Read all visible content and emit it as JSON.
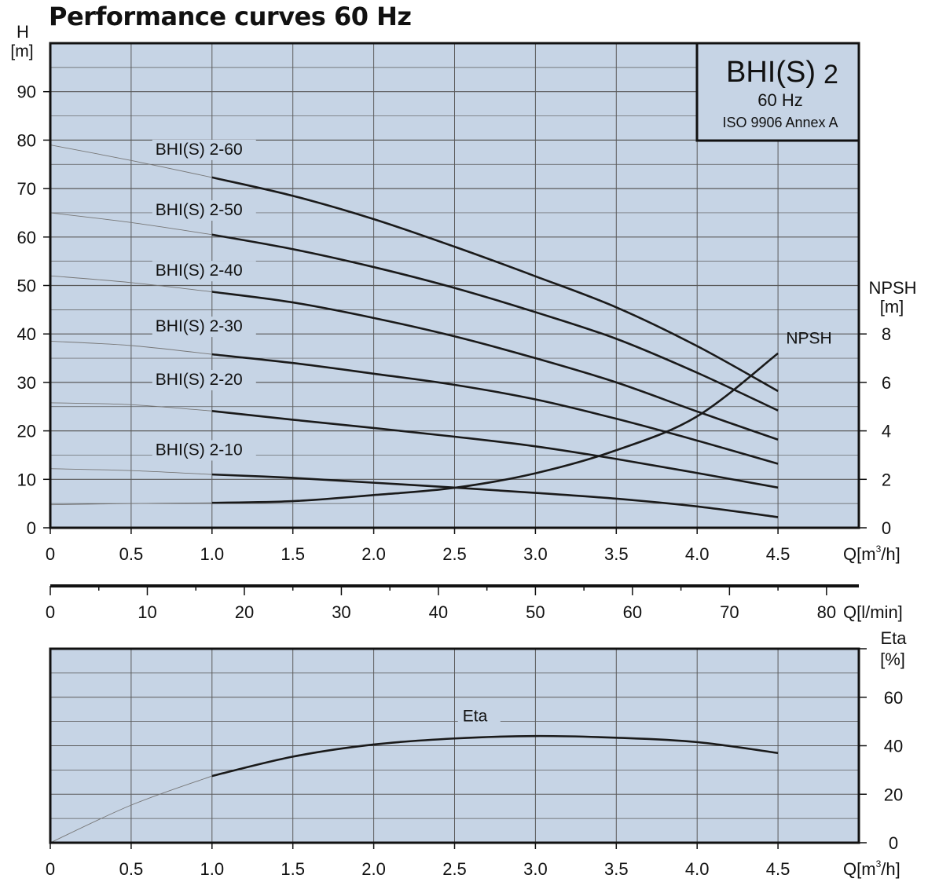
{
  "title": "Performance curves 60 Hz",
  "colors": {
    "plot_bg": "#c6d4e5",
    "curve": "#1a1a1a",
    "thin_curve": "#777777",
    "grid": "#5a5a5a"
  },
  "chart_data": [
    {
      "type": "line",
      "name": "head",
      "x_unit": "Q[m³/h]",
      "xlabel_main": "Q[m",
      "xlabel_sup": "3",
      "xlabel_end": "/h]",
      "xlim": [
        0,
        5
      ],
      "ylim": [
        0,
        100
      ],
      "x_ticks": [
        0,
        0.5,
        1.0,
        1.5,
        2.0,
        2.5,
        3.0,
        3.5,
        4.0,
        4.5
      ],
      "x_tick_labels": [
        "0",
        "0.5",
        "1.0",
        "1.5",
        "2.0",
        "2.5",
        "3.0",
        "3.5",
        "4.0",
        "4.5"
      ],
      "y_ticks": [
        0,
        10,
        20,
        30,
        40,
        50,
        60,
        70,
        80,
        90
      ],
      "y_tick_labels": [
        "0",
        "10",
        "20",
        "30",
        "40",
        "50",
        "60",
        "70",
        "80",
        "90"
      ],
      "ylabel_top": "H",
      "ylabel_unit": "[m]",
      "y2label_top": "NPSH",
      "y2label_unit": "[m]",
      "y2lim": [
        0,
        20
      ],
      "y2_ticks": [
        0,
        2,
        4,
        6,
        8
      ],
      "y2_tick_labels": [
        "0",
        "2",
        "4",
        "6",
        "8"
      ],
      "legend_box": {
        "model": "BHI(S)",
        "model_size": "2",
        "freq": "60 Hz",
        "standard": "ISO 9906 Annex A",
        "position": "top-right"
      },
      "series": [
        {
          "name": "BHI(S) 2-60",
          "label_at": [
            0.65,
            77
          ],
          "thin": [
            [
              0,
              79
            ],
            [
              0.5,
              75.8
            ],
            [
              1.0,
              72.3
            ]
          ],
          "values": [
            [
              1.0,
              72.3
            ],
            [
              1.5,
              68.5
            ],
            [
              2.0,
              63.7
            ],
            [
              2.5,
              58.0
            ],
            [
              3.0,
              51.9
            ],
            [
              3.5,
              45.5
            ],
            [
              4.0,
              37.5
            ],
            [
              4.5,
              28.2
            ]
          ]
        },
        {
          "name": "BHI(S) 2-50",
          "label_at": [
            0.65,
            64.5
          ],
          "thin": [
            [
              0,
              65
            ],
            [
              0.5,
              63.0
            ],
            [
              1.0,
              60.5
            ]
          ],
          "values": [
            [
              1.0,
              60.5
            ],
            [
              1.5,
              57.5
            ],
            [
              2.0,
              53.8
            ],
            [
              2.5,
              49.5
            ],
            [
              3.0,
              44.5
            ],
            [
              3.5,
              39.0
            ],
            [
              4.0,
              32.0
            ],
            [
              4.5,
              24.2
            ]
          ]
        },
        {
          "name": "BHI(S) 2-40",
          "label_at": [
            0.65,
            52
          ],
          "thin": [
            [
              0,
              52
            ],
            [
              0.5,
              50.6
            ],
            [
              1.0,
              48.7
            ]
          ],
          "values": [
            [
              1.0,
              48.7
            ],
            [
              1.5,
              46.5
            ],
            [
              2.0,
              43.3
            ],
            [
              2.5,
              39.5
            ],
            [
              3.0,
              35.0
            ],
            [
              3.5,
              30.0
            ],
            [
              4.0,
              24.0
            ],
            [
              4.5,
              18.2
            ]
          ]
        },
        {
          "name": "BHI(S) 2-30",
          "label_at": [
            0.65,
            40.5
          ],
          "thin": [
            [
              0,
              38.5
            ],
            [
              0.5,
              37.6
            ],
            [
              1.0,
              35.8
            ]
          ],
          "values": [
            [
              1.0,
              35.8
            ],
            [
              1.5,
              34.0
            ],
            [
              2.0,
              31.8
            ],
            [
              2.5,
              29.5
            ],
            [
              3.0,
              26.5
            ],
            [
              3.5,
              22.5
            ],
            [
              4.0,
              18.0
            ],
            [
              4.5,
              13.2
            ]
          ]
        },
        {
          "name": "BHI(S) 2-20",
          "label_at": [
            0.65,
            29.5
          ],
          "thin": [
            [
              0,
              25.8
            ],
            [
              0.5,
              25.4
            ],
            [
              1.0,
              24.1
            ]
          ],
          "values": [
            [
              1.0,
              24.1
            ],
            [
              1.5,
              22.3
            ],
            [
              2.0,
              20.6
            ],
            [
              2.5,
              18.8
            ],
            [
              3.0,
              16.8
            ],
            [
              3.5,
              14.2
            ],
            [
              4.0,
              11.3
            ],
            [
              4.5,
              8.3
            ]
          ]
        },
        {
          "name": "BHI(S) 2-10",
          "label_at": [
            0.65,
            15
          ],
          "thin": [
            [
              0,
              12.2
            ],
            [
              0.5,
              11.8
            ],
            [
              1.0,
              11.0
            ]
          ],
          "values": [
            [
              1.0,
              11.0
            ],
            [
              1.5,
              10.3
            ],
            [
              2.0,
              9.3
            ],
            [
              2.5,
              8.3
            ],
            [
              3.0,
              7.2
            ],
            [
              3.5,
              6.0
            ],
            [
              4.0,
              4.4
            ],
            [
              4.5,
              2.2
            ]
          ]
        }
      ],
      "npsh": {
        "name": "NPSH",
        "label_at": [
          4.55,
          38
        ],
        "thin": [
          [
            0,
            0.95
          ],
          [
            0.5,
            1.0
          ],
          [
            1.0,
            1.03
          ]
        ],
        "values": [
          [
            1.0,
            1.03
          ],
          [
            1.5,
            1.1
          ],
          [
            2.0,
            1.35
          ],
          [
            2.5,
            1.65
          ],
          [
            3.0,
            2.25
          ],
          [
            3.5,
            3.2
          ],
          [
            4.0,
            4.6
          ],
          [
            4.5,
            7.2
          ]
        ]
      }
    },
    {
      "type": "axis",
      "name": "flow_lmin",
      "xlabel": "Q[l/min]",
      "xlim": [
        0,
        83.333
      ],
      "x_ticks": [
        0,
        10,
        20,
        30,
        40,
        50,
        60,
        70,
        80
      ],
      "x_tick_labels": [
        "0",
        "10",
        "20",
        "30",
        "40",
        "50",
        "60",
        "70",
        "80"
      ]
    },
    {
      "type": "line",
      "name": "efficiency",
      "xlim": [
        0,
        5
      ],
      "ylim": [
        0,
        80
      ],
      "x_ticks": [
        0,
        0.5,
        1.0,
        1.5,
        2.0,
        2.5,
        3.0,
        3.5,
        4.0,
        4.5
      ],
      "x_tick_labels": [
        "0",
        "0.5",
        "1.0",
        "1.5",
        "2.0",
        "2.5",
        "3.0",
        "3.5",
        "4.0",
        "4.5"
      ],
      "y2_ticks": [
        0,
        20,
        40,
        60
      ],
      "y2_tick_labels": [
        "0",
        "20",
        "40",
        "60"
      ],
      "y2label_top": "Eta",
      "y2label_unit": "[%]",
      "xlabel_main": "Q[m",
      "xlabel_sup": "3",
      "xlabel_end": "/h]",
      "series": [
        {
          "name": "Eta",
          "label_at": [
            2.55,
            50
          ],
          "thin": [
            [
              0,
              0
            ],
            [
              0.5,
              15.5
            ],
            [
              1.0,
              27.5
            ]
          ],
          "values": [
            [
              1.0,
              27.5
            ],
            [
              1.5,
              35.5
            ],
            [
              2.0,
              40.5
            ],
            [
              2.5,
              43.0
            ],
            [
              3.0,
              44.0
            ],
            [
              3.5,
              43.3
            ],
            [
              4.0,
              41.5
            ],
            [
              4.5,
              37.0
            ]
          ]
        }
      ]
    }
  ]
}
